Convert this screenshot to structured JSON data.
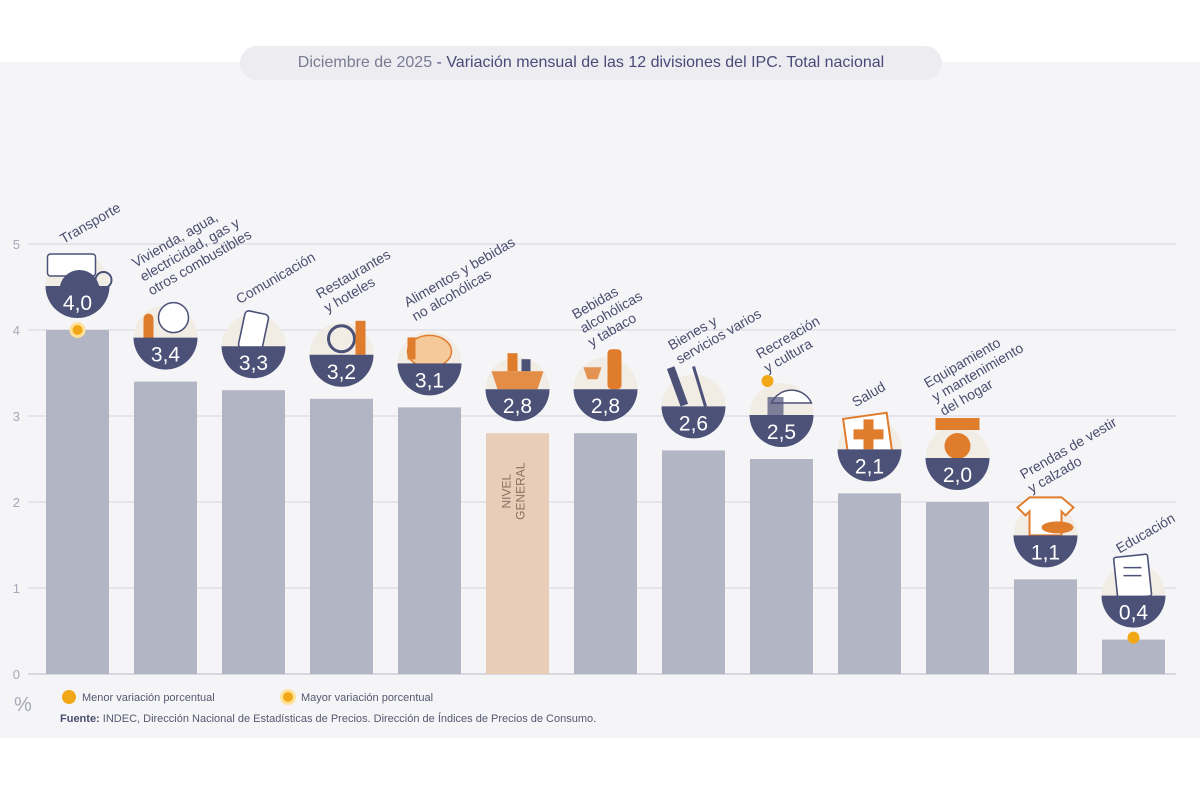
{
  "header": {
    "date": "Diciembre de 2025",
    "separator": " - ",
    "title": "Variación mensual de las 12 divisiones del IPC. Total nacional"
  },
  "chart_data": {
    "type": "bar",
    "categories": [
      "Transporte",
      "Vivienda, agua, electricidad, gas y otros combustibles",
      "Comunicación",
      "Restaurantes y hoteles",
      "Alimentos y bebidas no alcohólicas",
      "NIVEL GENERAL",
      "Bebidas alcohólicas y tabaco",
      "Bienes y servicios varios",
      "Recreación y cultura",
      "Salud",
      "Equipamiento y mantenimiento del hogar",
      "Prendas de vestir y calzado",
      "Educación"
    ],
    "category_label_lines": [
      [
        "Transporte"
      ],
      [
        "Vivienda, agua,",
        "electricidad, gas y",
        "otros combustibles"
      ],
      [
        "Comunicación"
      ],
      [
        "Restaurantes",
        "y hoteles"
      ],
      [
        "Alimentos y bebidas",
        "no alcohólicas"
      ],
      [],
      [
        "Bebidas",
        "alcohólicas",
        "y tabaco"
      ],
      [
        "Bienes y",
        "servicios varios"
      ],
      [
        "Recreación",
        "y cultura"
      ],
      [
        "Salud"
      ],
      [
        "Equipamiento",
        "y mantenimiento",
        "del hogar"
      ],
      [
        "Prendas de vestir",
        "y calzado"
      ],
      [
        "Educación"
      ]
    ],
    "values": [
      4.0,
      3.4,
      3.3,
      3.2,
      3.1,
      2.8,
      2.8,
      2.6,
      2.5,
      2.1,
      2.0,
      1.1,
      0.4
    ],
    "value_labels": [
      "4,0",
      "3,4",
      "3,3",
      "3,2",
      "3,1",
      "2,8",
      "2,8",
      "2,6",
      "2,5",
      "2,1",
      "2,0",
      "1,1",
      "0,4"
    ],
    "icons": [
      "bus-card-icon",
      "lightbulb-icon",
      "smartphone-icon",
      "cutlery-icon",
      "food-icon",
      "basket-icon",
      "wine-icon",
      "scissors-icon",
      "umbrella-icon",
      "first-aid-icon",
      "washing-machine-icon",
      "tshirt-icon",
      "book-icon"
    ],
    "overlay_labels": [
      null,
      null,
      null,
      null,
      null,
      [
        "NIVEL",
        "GENERAL"
      ],
      null,
      null,
      null,
      null,
      null,
      null,
      null
    ],
    "highlight": {
      "max_index": 0,
      "min_index": 12
    },
    "y_ticks": [
      "0",
      "1",
      "2",
      "3",
      "4",
      "5"
    ],
    "y_unit": "%",
    "ylim": [
      0,
      5
    ],
    "grid": true,
    "legend": [
      {
        "label": "Menor variación porcentual",
        "marker": "dot"
      },
      {
        "label": "Mayor variación porcentual",
        "marker": "ring-dot"
      }
    ],
    "source_bold": "Fuente:",
    "source_text": " INDEC, Dirección Nacional de Estadísticas de Precios. Dirección de Índices de Precios de Consumo."
  },
  "colors": {
    "bar": "#b2b6c4",
    "bar_general": "#e8cdb9",
    "badge": "#4c5178",
    "badge_top": "#f1ece4",
    "icon": "#e07d2c",
    "highlight_dot": "#f2a816",
    "grid": "#c8c8d2",
    "axis_text": "#a6a9b6",
    "label_text": "#4a4d6e",
    "general_text": "#8a7264"
  }
}
